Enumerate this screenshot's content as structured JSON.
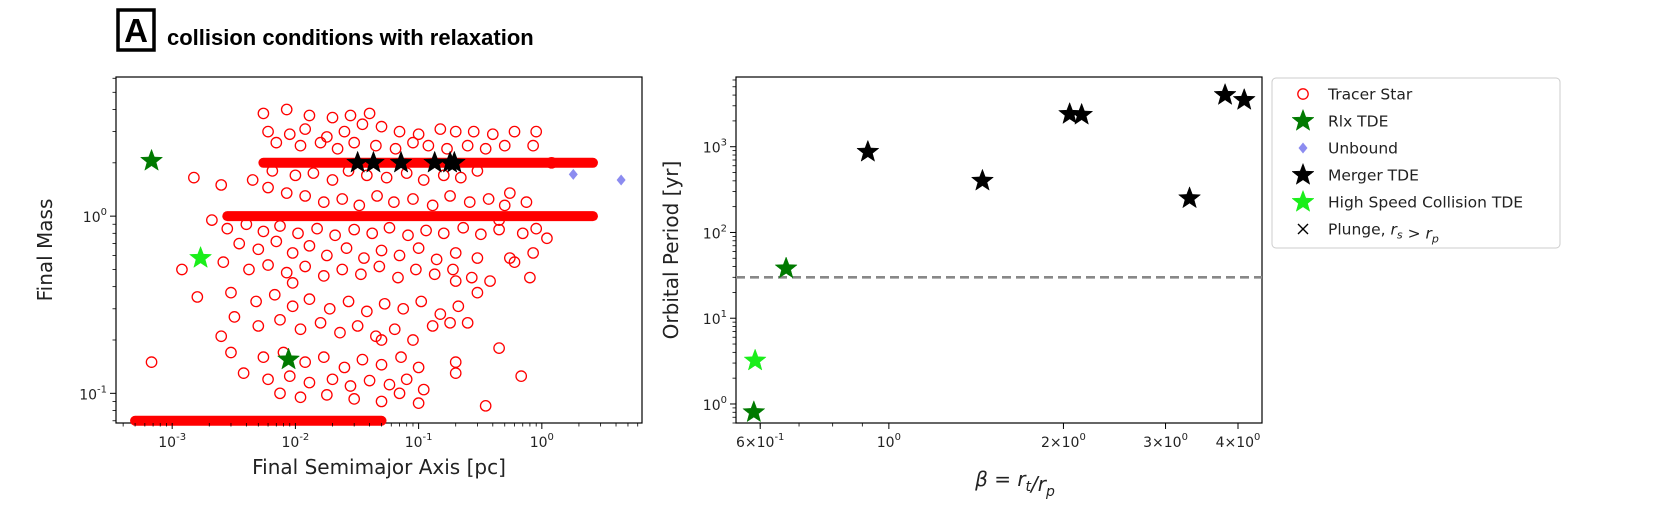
{
  "figure": {
    "panel_letter": "A",
    "heading": "collision conditions with relaxation"
  },
  "legend": {
    "entries": [
      {
        "label": "Tracer Star",
        "marker": "circle-open",
        "color": "#ff0000"
      },
      {
        "label": "Rlx TDE",
        "marker": "star",
        "color": "#007a00"
      },
      {
        "label": "Unbound",
        "marker": "diamond",
        "color": "#8c8cf0"
      },
      {
        "label": "Merger TDE",
        "marker": "star",
        "color": "#000000"
      },
      {
        "label": "High Speed Collision TDE",
        "marker": "star",
        "color": "#1aee1a"
      },
      {
        "label": "Plunge, r_s > r_p",
        "marker": "x",
        "color": "#000000"
      }
    ]
  },
  "chart_data": [
    {
      "type": "scatter",
      "xlabel": "Final Semimajor Axis [pc]",
      "ylabel": "Final Mass",
      "xscale": "log",
      "yscale": "log",
      "xlim": [
        0.00035,
        6.5
      ],
      "ylim": [
        0.068,
        6.1
      ],
      "xticks": [
        {
          "value": 0.001,
          "label": "10^{-3}"
        },
        {
          "value": 0.01,
          "label": "10^{-2}"
        },
        {
          "value": 0.1,
          "label": "10^{-1}"
        },
        {
          "value": 1,
          "label": "10^{0}"
        }
      ],
      "yticks": [
        {
          "value": 0.1,
          "label": "10^{-1}"
        },
        {
          "value": 1,
          "label": "10^{0}"
        }
      ],
      "band_lines": [
        {
          "mass": 2.0,
          "x_range": [
            0.0055,
            2.6
          ],
          "color": "#ff0000"
        },
        {
          "mass": 1.0,
          "x_range": [
            0.0028,
            2.6
          ],
          "color": "#ff0000"
        },
        {
          "mass": 0.07,
          "x_range": [
            0.0005,
            0.05
          ],
          "color": "#ff0000"
        }
      ],
      "series": [
        {
          "name": "Tracer Star",
          "marker": "circle-open",
          "color": "#ff0000",
          "points": [
            [
              0.0055,
              3.8
            ],
            [
              0.0085,
              4.0
            ],
            [
              0.013,
              3.7
            ],
            [
              0.02,
              3.6
            ],
            [
              0.028,
              3.7
            ],
            [
              0.04,
              3.8
            ],
            [
              0.006,
              3.0
            ],
            [
              0.009,
              2.9
            ],
            [
              0.012,
              3.1
            ],
            [
              0.018,
              2.8
            ],
            [
              0.025,
              3.0
            ],
            [
              0.035,
              3.3
            ],
            [
              0.05,
              3.2
            ],
            [
              0.07,
              3.0
            ],
            [
              0.1,
              2.9
            ],
            [
              0.15,
              3.1
            ],
            [
              0.2,
              3.0
            ],
            [
              0.28,
              3.0
            ],
            [
              0.4,
              2.9
            ],
            [
              0.6,
              3.0
            ],
            [
              0.9,
              3.0
            ],
            [
              0.007,
              2.6
            ],
            [
              0.011,
              2.5
            ],
            [
              0.016,
              2.6
            ],
            [
              0.022,
              2.4
            ],
            [
              0.03,
              2.6
            ],
            [
              0.045,
              2.5
            ],
            [
              0.065,
              2.4
            ],
            [
              0.09,
              2.6
            ],
            [
              0.12,
              2.5
            ],
            [
              0.17,
              2.4
            ],
            [
              0.25,
              2.5
            ],
            [
              0.35,
              2.4
            ],
            [
              0.5,
              2.5
            ],
            [
              0.0065,
              1.8
            ],
            [
              0.01,
              1.7
            ],
            [
              0.014,
              1.75
            ],
            [
              0.02,
              1.6
            ],
            [
              0.027,
              1.8
            ],
            [
              0.038,
              1.7
            ],
            [
              0.055,
              1.65
            ],
            [
              0.08,
              1.75
            ],
            [
              0.11,
              1.6
            ],
            [
              0.16,
              1.7
            ],
            [
              0.22,
              1.65
            ],
            [
              0.3,
              1.8
            ],
            [
              0.0015,
              1.65
            ],
            [
              0.0025,
              1.5
            ],
            [
              0.0045,
              1.6
            ],
            [
              0.006,
              1.45
            ],
            [
              0.0085,
              1.35
            ],
            [
              0.012,
              1.3
            ],
            [
              0.017,
              1.2
            ],
            [
              0.024,
              1.25
            ],
            [
              0.033,
              1.15
            ],
            [
              0.046,
              1.3
            ],
            [
              0.063,
              1.2
            ],
            [
              0.09,
              1.25
            ],
            [
              0.13,
              1.15
            ],
            [
              0.18,
              1.3
            ],
            [
              0.26,
              1.2
            ],
            [
              0.37,
              1.25
            ],
            [
              0.5,
              1.15
            ],
            [
              0.75,
              1.2
            ],
            [
              0.0021,
              0.95
            ],
            [
              0.0028,
              0.85
            ],
            [
              0.004,
              0.9
            ],
            [
              0.0055,
              0.82
            ],
            [
              0.0075,
              0.88
            ],
            [
              0.0105,
              0.8
            ],
            [
              0.015,
              0.85
            ],
            [
              0.021,
              0.78
            ],
            [
              0.03,
              0.84
            ],
            [
              0.042,
              0.8
            ],
            [
              0.058,
              0.86
            ],
            [
              0.082,
              0.78
            ],
            [
              0.115,
              0.83
            ],
            [
              0.16,
              0.8
            ],
            [
              0.23,
              0.86
            ],
            [
              0.32,
              0.79
            ],
            [
              0.45,
              0.84
            ],
            [
              0.7,
              0.8
            ],
            [
              0.0035,
              0.7
            ],
            [
              0.005,
              0.65
            ],
            [
              0.007,
              0.72
            ],
            [
              0.0095,
              0.62
            ],
            [
              0.013,
              0.68
            ],
            [
              0.018,
              0.6
            ],
            [
              0.026,
              0.66
            ],
            [
              0.036,
              0.58
            ],
            [
              0.05,
              0.64
            ],
            [
              0.07,
              0.6
            ],
            [
              0.1,
              0.66
            ],
            [
              0.14,
              0.57
            ],
            [
              0.2,
              0.62
            ],
            [
              0.3,
              0.58
            ],
            [
              0.55,
              0.58
            ],
            [
              0.85,
              0.62
            ],
            [
              0.0012,
              0.5
            ],
            [
              0.0026,
              0.55
            ],
            [
              0.0042,
              0.5
            ],
            [
              0.006,
              0.53
            ],
            [
              0.0085,
              0.48
            ],
            [
              0.012,
              0.52
            ],
            [
              0.017,
              0.46
            ],
            [
              0.024,
              0.5
            ],
            [
              0.034,
              0.47
            ],
            [
              0.048,
              0.52
            ],
            [
              0.068,
              0.45
            ],
            [
              0.095,
              0.5
            ],
            [
              0.135,
              0.47
            ],
            [
              0.19,
              0.5
            ],
            [
              0.27,
              0.45
            ],
            [
              0.38,
              0.43
            ],
            [
              0.0016,
              0.35
            ],
            [
              0.003,
              0.37
            ],
            [
              0.0048,
              0.33
            ],
            [
              0.0068,
              0.36
            ],
            [
              0.0095,
              0.31
            ],
            [
              0.013,
              0.34
            ],
            [
              0.019,
              0.3
            ],
            [
              0.027,
              0.33
            ],
            [
              0.038,
              0.29
            ],
            [
              0.053,
              0.32
            ],
            [
              0.075,
              0.3
            ],
            [
              0.105,
              0.33
            ],
            [
              0.15,
              0.28
            ],
            [
              0.21,
              0.31
            ],
            [
              0.3,
              0.37
            ],
            [
              0.0032,
              0.27
            ],
            [
              0.005,
              0.24
            ],
            [
              0.0075,
              0.26
            ],
            [
              0.011,
              0.23
            ],
            [
              0.016,
              0.25
            ],
            [
              0.023,
              0.22
            ],
            [
              0.032,
              0.24
            ],
            [
              0.045,
              0.21
            ],
            [
              0.064,
              0.23
            ],
            [
              0.09,
              0.2
            ],
            [
              0.13,
              0.24
            ],
            [
              0.18,
              0.25
            ],
            [
              0.25,
              0.25
            ],
            [
              0.003,
              0.17
            ],
            [
              0.0055,
              0.16
            ],
            [
              0.008,
              0.17
            ],
            [
              0.012,
              0.15
            ],
            [
              0.017,
              0.16
            ],
            [
              0.025,
              0.14
            ],
            [
              0.035,
              0.155
            ],
            [
              0.05,
              0.145
            ],
            [
              0.072,
              0.16
            ],
            [
              0.1,
              0.14
            ],
            [
              0.2,
              0.15
            ],
            [
              0.45,
              0.18
            ],
            [
              0.0038,
              0.13
            ],
            [
              0.006,
              0.12
            ],
            [
              0.009,
              0.125
            ],
            [
              0.013,
              0.115
            ],
            [
              0.02,
              0.12
            ],
            [
              0.028,
              0.11
            ],
            [
              0.04,
              0.118
            ],
            [
              0.058,
              0.112
            ],
            [
              0.08,
              0.12
            ],
            [
              0.11,
              0.105
            ],
            [
              0.2,
              0.13
            ],
            [
              0.0075,
              0.1
            ],
            [
              0.011,
              0.095
            ],
            [
              0.018,
              0.098
            ],
            [
              0.03,
              0.093
            ],
            [
              0.05,
              0.09
            ],
            [
              0.07,
              0.1
            ],
            [
              0.1,
              0.088
            ],
            [
              0.35,
              0.085
            ],
            [
              0.00068,
              0.15
            ],
            [
              0.68,
              0.125
            ],
            [
              0.9,
              0.85
            ],
            [
              1.1,
              0.75
            ],
            [
              0.6,
              0.55
            ],
            [
              0.8,
              0.45
            ],
            [
              0.2,
              0.43
            ],
            [
              0.05,
              0.2
            ],
            [
              1.2,
              2.0
            ],
            [
              0.85,
              2.5
            ],
            [
              0.0095,
              0.42
            ],
            [
              0.0025,
              0.21
            ],
            [
              0.45,
              0.95
            ],
            [
              0.55,
              1.35
            ]
          ]
        },
        {
          "name": "Rlx TDE",
          "marker": "star",
          "color": "#007a00",
          "points": [
            [
              0.00068,
              2.05
            ],
            [
              0.0088,
              0.155
            ]
          ]
        },
        {
          "name": "Unbound",
          "marker": "diamond",
          "color": "#8c8cf0",
          "points": [
            [
              1.8,
              1.72
            ],
            [
              4.4,
              1.6
            ]
          ]
        },
        {
          "name": "Merger TDE",
          "marker": "star",
          "color": "#000000",
          "points": [
            [
              0.032,
              2.0
            ],
            [
              0.043,
              2.0
            ],
            [
              0.072,
              2.0
            ],
            [
              0.135,
              2.0
            ],
            [
              0.18,
              2.0
            ],
            [
              0.195,
              2.0
            ]
          ]
        },
        {
          "name": "High Speed Collision TDE",
          "marker": "star",
          "color": "#1aee1a",
          "points": [
            [
              0.0017,
              0.58
            ]
          ]
        }
      ]
    },
    {
      "type": "scatter",
      "xlabel": "β = r_t/r_p",
      "ylabel": "Orbital Period [yr]",
      "xscale": "log",
      "yscale": "log",
      "xlim": [
        0.545,
        4.4
      ],
      "ylim": [
        0.6,
        6500
      ],
      "xticks": [
        {
          "value": 0.6,
          "label": "6×10^{-1}"
        },
        {
          "value": 1,
          "label": "10^{0}"
        },
        {
          "value": 2,
          "label": "2×10^{0}"
        },
        {
          "value": 3,
          "label": "3×10^{0}"
        },
        {
          "value": 4,
          "label": "4×10^{0}"
        }
      ],
      "yticks": [
        {
          "value": 1,
          "label": "10^{0}"
        },
        {
          "value": 10,
          "label": "10^{1}"
        },
        {
          "value": 100,
          "label": "10^{2}"
        },
        {
          "value": 1000,
          "label": "10^{3}"
        }
      ],
      "hline": {
        "value": 30,
        "style": "dashed",
        "color": "#888888"
      },
      "series": [
        {
          "name": "Rlx TDE",
          "marker": "star",
          "color": "#007a00",
          "points": [
            [
              0.585,
              0.8
            ],
            [
              0.665,
              38
            ]
          ]
        },
        {
          "name": "High Speed Collision TDE",
          "marker": "star",
          "color": "#1aee1a",
          "points": [
            [
              0.588,
              3.2
            ]
          ]
        },
        {
          "name": "Merger TDE",
          "marker": "star",
          "color": "#000000",
          "points": [
            [
              0.92,
              870
            ],
            [
              1.45,
              400
            ],
            [
              2.05,
              2400
            ],
            [
              2.15,
              2350
            ],
            [
              3.3,
              250
            ],
            [
              3.8,
              4000
            ],
            [
              4.1,
              3500
            ]
          ]
        }
      ]
    }
  ]
}
